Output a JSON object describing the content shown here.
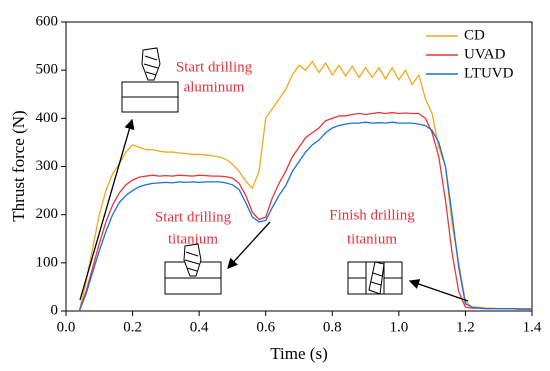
{
  "chart_data": {
    "type": "line",
    "x_label": "Time (s)",
    "y_label": "Thrust force (N)",
    "xlim": [
      0.0,
      1.4
    ],
    "ylim": [
      0,
      600
    ],
    "xticks": [
      {
        "value": 0.0,
        "label": "0.0"
      },
      0.2,
      0.4,
      0.6,
      0.8,
      {
        "value": 1.0,
        "label": "1.0"
      },
      1.2,
      1.4
    ],
    "yticks": [
      0,
      100,
      200,
      300,
      400,
      500,
      600
    ],
    "legend": "upper right",
    "x": [
      0.04,
      0.06,
      0.08,
      0.1,
      0.12,
      0.14,
      0.16,
      0.18,
      0.2,
      0.22,
      0.24,
      0.26,
      0.28,
      0.3,
      0.32,
      0.34,
      0.36,
      0.38,
      0.4,
      0.42,
      0.44,
      0.46,
      0.48,
      0.5,
      0.52,
      0.54,
      0.56,
      0.58,
      0.6,
      0.62,
      0.64,
      0.66,
      0.68,
      0.7,
      0.72,
      0.74,
      0.76,
      0.78,
      0.8,
      0.82,
      0.84,
      0.86,
      0.88,
      0.9,
      0.92,
      0.94,
      0.96,
      0.98,
      1.0,
      1.02,
      1.04,
      1.06,
      1.08,
      1.1,
      1.12,
      1.14,
      1.16,
      1.18,
      1.2,
      1.22,
      1.24,
      1.26,
      1.28,
      1.3,
      1.32,
      1.34,
      1.36,
      1.38,
      1.4
    ],
    "series": [
      {
        "name": "CD",
        "color": "#f0a81e",
        "values": [
          0,
          60,
          130,
          200,
          250,
          285,
          305,
          330,
          345,
          340,
          335,
          335,
          332,
          330,
          330,
          328,
          327,
          325,
          325,
          324,
          322,
          320,
          315,
          305,
          290,
          270,
          255,
          290,
          400,
          420,
          440,
          460,
          490,
          510,
          500,
          518,
          495,
          515,
          490,
          510,
          488,
          508,
          485,
          505,
          485,
          505,
          482,
          505,
          480,
          500,
          470,
          490,
          440,
          410,
          340,
          300,
          180,
          100,
          20,
          8,
          8,
          6,
          6,
          5,
          5,
          5,
          5,
          4,
          4
        ]
      },
      {
        "name": "UVAD",
        "color": "#e8353a",
        "values": [
          0,
          40,
          90,
          140,
          185,
          220,
          245,
          262,
          272,
          278,
          280,
          282,
          280,
          281,
          280,
          282,
          281,
          280,
          282,
          281,
          280,
          280,
          279,
          276,
          265,
          240,
          205,
          190,
          195,
          235,
          265,
          290,
          320,
          340,
          360,
          370,
          380,
          395,
          400,
          405,
          405,
          408,
          410,
          408,
          410,
          412,
          410,
          412,
          410,
          411,
          410,
          410,
          400,
          370,
          320,
          230,
          120,
          40,
          8,
          6,
          6,
          5,
          5,
          5,
          5,
          5,
          4,
          4,
          4
        ]
      },
      {
        "name": "LTUVD",
        "color": "#1e6fd9",
        "values": [
          0,
          35,
          80,
          125,
          165,
          200,
          225,
          240,
          250,
          258,
          262,
          265,
          266,
          267,
          266,
          268,
          267,
          268,
          267,
          268,
          268,
          268,
          266,
          262,
          252,
          225,
          195,
          185,
          188,
          215,
          240,
          260,
          290,
          310,
          330,
          345,
          355,
          370,
          380,
          385,
          388,
          390,
          390,
          392,
          390,
          391,
          390,
          392,
          390,
          390,
          390,
          388,
          385,
          375,
          350,
          300,
          200,
          90,
          15,
          8,
          6,
          5,
          5,
          5,
          5,
          5,
          4,
          4,
          4
        ]
      }
    ],
    "annotations": [
      [
        "Start drilling",
        "aluminum"
      ],
      [
        "Start drilling",
        "titanium"
      ],
      [
        "Finish drilling",
        "titanium"
      ]
    ]
  }
}
